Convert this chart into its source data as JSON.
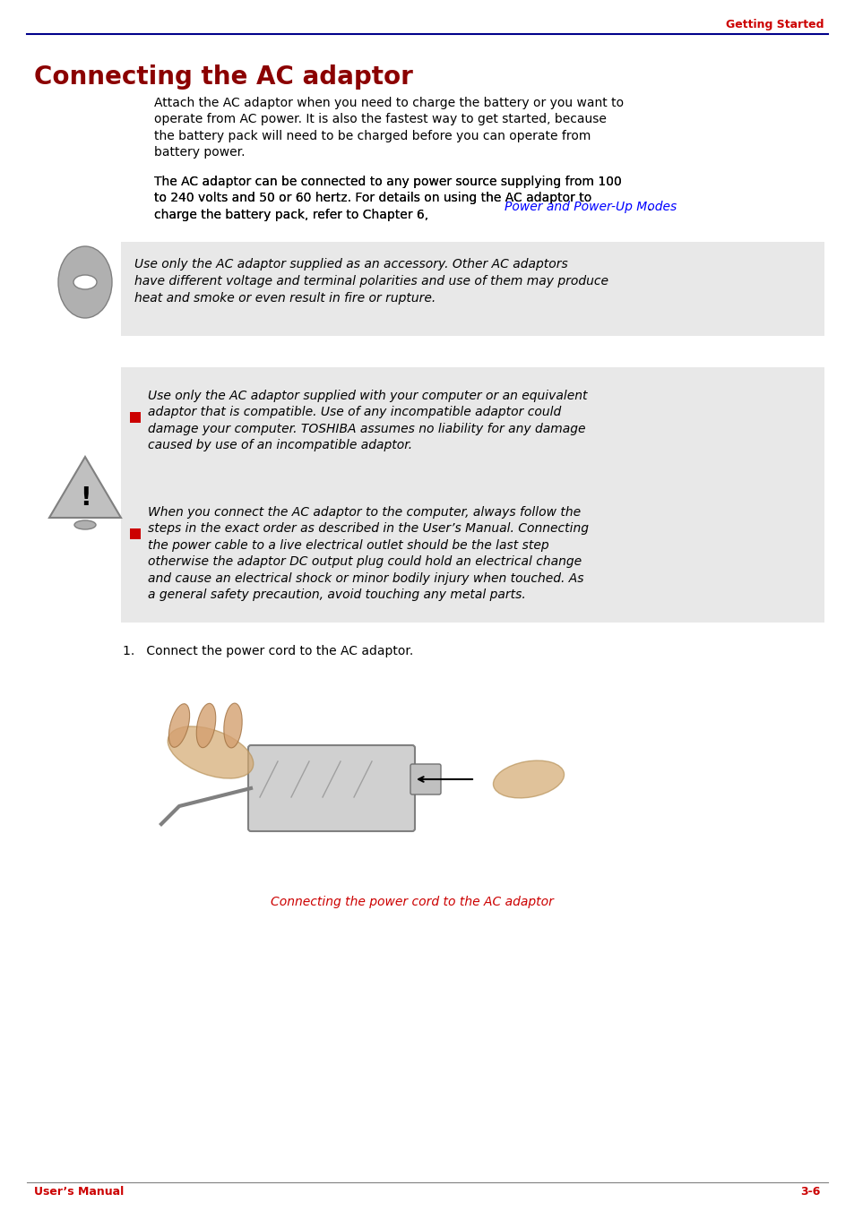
{
  "title": "Connecting the AC adaptor",
  "header_right": "Getting Started",
  "footer_left": "User’s Manual",
  "footer_right": "3-6",
  "header_line_color": "#00008B",
  "title_color": "#8B0000",
  "body_text_color": "#000000",
  "link_color": "#0000FF",
  "red_color": "#CC0000",
  "footer_text_color": "#CC0000",
  "bg_color": "#FFFFFF",
  "note_bg_color": "#E8E8E8",
  "para1": "Attach the AC adaptor when you need to charge the battery or you want to\noperate from AC power. It is also the fastest way to get started, because\nthe battery pack will need to be charged before you can operate from\nbattery power.",
  "para2_pre": "The AC adaptor can be connected to any power source supplying from 100\nto 240 volts and 50 or 60 hertz. For details on using the AC adaptor to\ncharge the battery pack, refer to Chapter 6, ",
  "para2_link": "Power and Power-Up Modes",
  "para2_post": ".",
  "caution_text": "Use only the AC adaptor supplied as an accessory. Other AC adaptors\nhave different voltage and terminal polarities and use of them may produce\nheat and smoke or even result in fire or rupture.",
  "warning_bullet1": "Use only the AC adaptor supplied with your computer or an equivalent\nadaptor that is compatible. Use of any incompatible adaptor could\ndamage your computer. TOSHIBA assumes no liability for any damage\ncaused by use of an incompatible adaptor.",
  "warning_bullet2": "When you connect the AC adaptor to the computer, always follow the\nsteps in the exact order as described in the User’s Manual. Connecting\nthe power cable to a live electrical outlet should be the last step\notherwise the adaptor DC output plug could hold an electrical change\nand cause an electrical shock or minor bodily injury when touched. As\na general safety precaution, avoid touching any metal parts.",
  "step1": "1.   Connect the power cord to the AC adaptor.",
  "caption": "Connecting the power cord to the AC adaptor",
  "caption_color": "#CC0000"
}
